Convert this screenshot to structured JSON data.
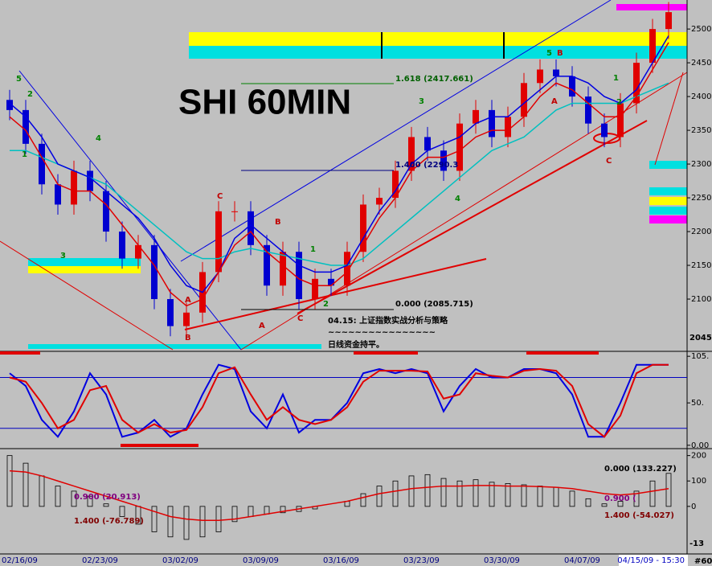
{
  "chart_data": [
    {
      "type": "candlestick",
      "title": "SHI 60MIN",
      "categories": [
        "02/16/09",
        null,
        null,
        null,
        null,
        "02/23/09",
        null,
        null,
        null,
        null,
        "03/02/09",
        null,
        null,
        null,
        null,
        "03/09/09",
        null,
        null,
        null,
        null,
        "03/16/09",
        null,
        null,
        null,
        null,
        "03/23/09",
        null,
        null,
        null,
        null,
        "03/30/09",
        null,
        null,
        null,
        null,
        "04/07/09",
        null,
        null,
        null,
        null,
        null,
        "04/15/09 - 15:30"
      ],
      "open": [
        2395,
        2380,
        2330,
        2270,
        2240,
        2290,
        2260,
        2200,
        2160,
        2180,
        2100,
        2060,
        2080,
        2140,
        2230,
        2230,
        2180,
        2120,
        2170,
        2100,
        2130,
        2120,
        2170,
        2240,
        2250,
        2290,
        2340,
        2320,
        2290,
        2360,
        2380,
        2340,
        2370,
        2420,
        2440,
        2430,
        2400,
        2360,
        2340,
        2390,
        2450,
        2500
      ],
      "high": [
        2410,
        2395,
        2345,
        2285,
        2305,
        2305,
        2275,
        2215,
        2195,
        2195,
        2115,
        2095,
        2155,
        2245,
        2245,
        2245,
        2195,
        2185,
        2185,
        2145,
        2145,
        2185,
        2255,
        2265,
        2305,
        2355,
        2355,
        2335,
        2375,
        2395,
        2395,
        2385,
        2435,
        2455,
        2455,
        2445,
        2415,
        2375,
        2405,
        2465,
        2515,
        2540
      ],
      "low": [
        2365,
        2315,
        2255,
        2225,
        2225,
        2245,
        2185,
        2145,
        2145,
        2085,
        2045,
        2045,
        2065,
        2125,
        2215,
        2165,
        2105,
        2105,
        2085,
        2085,
        2105,
        2105,
        2155,
        2225,
        2235,
        2275,
        2305,
        2275,
        2275,
        2345,
        2325,
        2325,
        2355,
        2405,
        2415,
        2385,
        2345,
        2325,
        2325,
        2375,
        2435,
        2485
      ],
      "close": [
        2380,
        2330,
        2270,
        2240,
        2290,
        2260,
        2200,
        2160,
        2180,
        2100,
        2060,
        2080,
        2140,
        2230,
        2230,
        2180,
        2120,
        2170,
        2100,
        2130,
        2120,
        2170,
        2240,
        2250,
        2290,
        2340,
        2320,
        2290,
        2360,
        2380,
        2340,
        2370,
        2420,
        2440,
        2430,
        2400,
        2360,
        2340,
        2390,
        2450,
        2500,
        2525
      ],
      "up_color": "#e00000",
      "down_color": "#0000d0",
      "overlays": [
        {
          "color": "#00c0c0",
          "values": [
            2320,
            2320,
            2310,
            2300,
            2290,
            2280,
            2270,
            2250,
            2230,
            2210,
            2190,
            2170,
            2160,
            2160,
            2170,
            2175,
            2170,
            2165,
            2160,
            2155,
            2150,
            2150,
            2160,
            2180,
            2200,
            2220,
            2240,
            2260,
            2280,
            2300,
            2320,
            2330,
            2340,
            2360,
            2380,
            2390,
            2390,
            2390,
            2390,
            2400,
            2410,
            2420
          ]
        },
        {
          "color": "#0000e0",
          "values": [
            2390,
            2370,
            2340,
            2300,
            2290,
            2280,
            2260,
            2240,
            2220,
            2190,
            2150,
            2120,
            2110,
            2140,
            2190,
            2210,
            2190,
            2170,
            2150,
            2140,
            2140,
            2150,
            2190,
            2230,
            2260,
            2300,
            2320,
            2330,
            2340,
            2360,
            2370,
            2370,
            2390,
            2410,
            2430,
            2430,
            2420,
            2400,
            2390,
            2410,
            2450,
            2490
          ]
        },
        {
          "color": "#e00000",
          "values": [
            2370,
            2350,
            2310,
            2270,
            2260,
            2260,
            2240,
            2210,
            2180,
            2150,
            2110,
            2090,
            2100,
            2140,
            2180,
            2200,
            2170,
            2150,
            2130,
            2120,
            2120,
            2140,
            2180,
            2220,
            2250,
            2290,
            2310,
            2310,
            2320,
            2340,
            2350,
            2350,
            2370,
            2400,
            2420,
            2410,
            2390,
            2370,
            2370,
            2400,
            2440,
            2480
          ]
        }
      ],
      "ylim": [
        2025,
        2543
      ],
      "yticks": [
        2100,
        2150,
        2200,
        2250,
        2300,
        2350,
        2400,
        2450,
        2500
      ],
      "annotations": [
        "1.618 (2417.661)",
        "1.400 (2290.3",
        "0.000 (2085.715)",
        "04.15: 上证指数实战分析与策略",
        "~~~~~~~~~~~~~~~~",
        "日线资金持平。",
        "5",
        "2",
        "1",
        "4",
        "3",
        "A",
        "B",
        "C",
        "B",
        "A",
        "C",
        "1",
        "2",
        "3",
        "4",
        "5",
        "B",
        "A",
        "C",
        "1",
        "2",
        "2045.",
        "#60"
      ]
    },
    {
      "type": "line",
      "series": [
        {
          "color": "#0000e0",
          "values": [
            85,
            70,
            30,
            10,
            40,
            85,
            60,
            10,
            15,
            30,
            10,
            20,
            60,
            95,
            90,
            40,
            20,
            60,
            15,
            30,
            30,
            50,
            85,
            90,
            85,
            90,
            85,
            40,
            70,
            90,
            80,
            80,
            90,
            90,
            85,
            60,
            10,
            10,
            50,
            95,
            95,
            95
          ]
        },
        {
          "color": "#e00000",
          "values": [
            80,
            75,
            50,
            20,
            30,
            65,
            70,
            30,
            15,
            25,
            15,
            18,
            45,
            85,
            92,
            60,
            30,
            45,
            30,
            25,
            30,
            45,
            75,
            88,
            88,
            88,
            87,
            55,
            60,
            85,
            82,
            80,
            88,
            90,
            88,
            70,
            25,
            10,
            35,
            85,
            95,
            95
          ]
        }
      ],
      "levels": [
        80,
        20
      ],
      "level_color": "#0000c0",
      "ylim": [
        -3,
        108
      ],
      "yticks": [
        {
          "value": 105,
          "label": "105."
        },
        {
          "value": 50,
          "label": "50."
        },
        {
          "value": 0,
          "label": "0.00"
        }
      ]
    },
    {
      "type": "bar",
      "color": "#000000",
      "values": [
        200,
        170,
        120,
        80,
        60,
        40,
        10,
        -40,
        -70,
        -100,
        -120,
        -130,
        -120,
        -100,
        -60,
        -40,
        -30,
        -25,
        -20,
        -10,
        0,
        20,
        50,
        80,
        100,
        120,
        125,
        110,
        100,
        105,
        95,
        90,
        85,
        80,
        75,
        60,
        30,
        10,
        20,
        60,
        100,
        130
      ],
      "overlays": [
        {
          "color": "#e00000",
          "values": [
            140,
            135,
            120,
            100,
            80,
            60,
            40,
            20,
            0,
            -20,
            -40,
            -50,
            -55,
            -55,
            -50,
            -40,
            -30,
            -20,
            -10,
            0,
            10,
            20,
            35,
            50,
            60,
            70,
            75,
            80,
            80,
            82,
            82,
            80,
            80,
            78,
            75,
            70,
            60,
            50,
            45,
            50,
            60,
            70
          ]
        }
      ],
      "ylim": [
        -184,
        221
      ],
      "yticks": [
        200,
        100,
        0
      ],
      "annotations": [
        "0.000 (133.227)",
        "0.900 (20.913)",
        "1.400 (-76.789)",
        "0.900 (",
        "1.400 (-54.027)",
        "-13"
      ]
    }
  ]
}
